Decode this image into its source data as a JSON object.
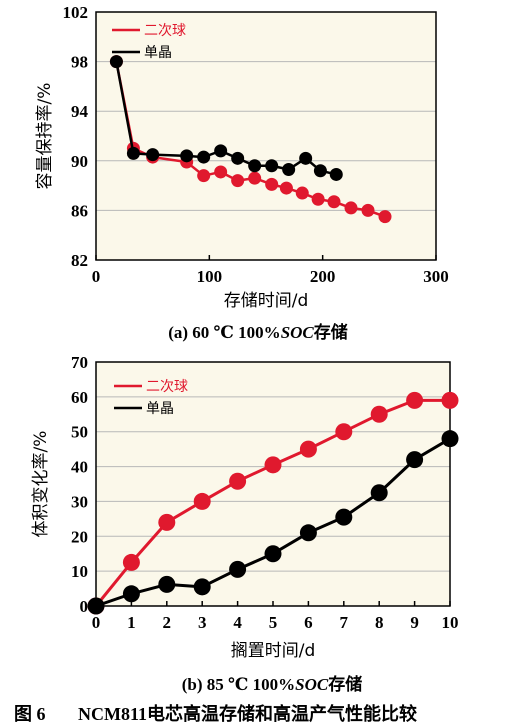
{
  "chart_data": [
    {
      "type": "line",
      "caption": "(a) 60 ℃ 100%SOC存储",
      "caption_parts": {
        "prefix": "(a) 60 ℃ 100%",
        "italic": "SOC",
        "suffix": "存储"
      },
      "xlabel": "存储时间/d",
      "ylabel": "容量保持率/%",
      "xlim": [
        0,
        300
      ],
      "ylim": [
        82,
        102
      ],
      "xticks": [
        0,
        100,
        200,
        300
      ],
      "yticks": [
        82,
        86,
        90,
        94,
        98,
        102
      ],
      "grid": true,
      "legend_position": "top-left",
      "series": [
        {
          "name": "二次球",
          "color": "#e0192e",
          "x": [
            18,
            33,
            50,
            80,
            95,
            110,
            125,
            140,
            155,
            168,
            182,
            196,
            210,
            225,
            240,
            255
          ],
          "y": [
            98.0,
            91.0,
            90.3,
            89.9,
            88.8,
            89.1,
            88.4,
            88.6,
            88.1,
            87.8,
            87.4,
            86.9,
            86.7,
            86.2,
            86.0,
            85.5
          ]
        },
        {
          "name": "单晶",
          "color": "#000000",
          "x": [
            18,
            33,
            50,
            80,
            95,
            110,
            125,
            140,
            155,
            170,
            185,
            198,
            212
          ],
          "y": [
            98.0,
            90.6,
            90.5,
            90.4,
            90.3,
            90.8,
            90.2,
            89.6,
            89.6,
            89.3,
            90.2,
            89.2,
            88.9
          ]
        }
      ]
    },
    {
      "type": "line",
      "caption": "(b) 85 ℃ 100%SOC存储",
      "caption_parts": {
        "prefix": "(b) 85 ℃ 100%",
        "italic": "SOC",
        "suffix": "存储"
      },
      "xlabel": "搁置时间/d",
      "ylabel": "体积变化率/%",
      "xlim": [
        0,
        10
      ],
      "ylim": [
        0,
        70
      ],
      "xticks": [
        0,
        1,
        2,
        3,
        4,
        5,
        6,
        7,
        8,
        9,
        10
      ],
      "yticks": [
        0,
        10,
        20,
        30,
        40,
        50,
        60,
        70
      ],
      "grid": true,
      "legend_position": "top-left",
      "series": [
        {
          "name": "二次球",
          "color": "#e0192e",
          "x": [
            0,
            1,
            2,
            3,
            4,
            5,
            6,
            7,
            8,
            9,
            10
          ],
          "y": [
            0,
            12.5,
            24,
            30,
            35.8,
            40.5,
            45,
            50,
            55,
            59,
            59
          ]
        },
        {
          "name": "单晶",
          "color": "#000000",
          "x": [
            0,
            1,
            2,
            3,
            4,
            5,
            6,
            7,
            8,
            9,
            10
          ],
          "y": [
            0,
            3.5,
            6.2,
            5.5,
            10.5,
            15,
            21,
            25.5,
            32.5,
            42,
            48
          ]
        }
      ]
    }
  ],
  "figure_caption": {
    "label": "图 6",
    "text": "NCM811电芯高温存储和高温产气性能比较"
  },
  "style": {
    "plot_bg": "#fbf8ea",
    "grid_color": "#b8b8b8",
    "red": "#e0192e",
    "black": "#000000"
  }
}
